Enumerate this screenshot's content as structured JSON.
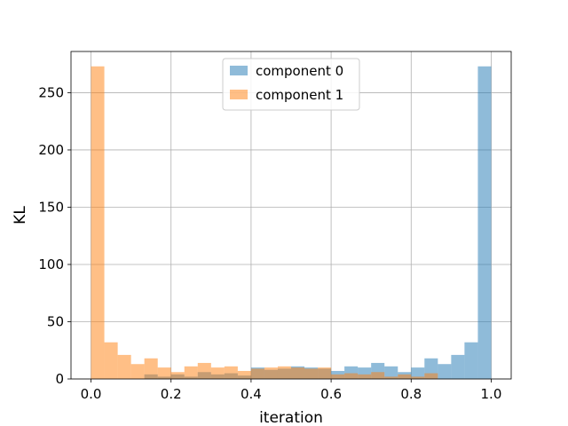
{
  "chart_data": {
    "type": "histogram",
    "title": "",
    "xlabel": "iteration",
    "ylabel": "KL",
    "xlim": [
      -0.05,
      1.05
    ],
    "ylim": [
      0,
      286
    ],
    "x_ticks": [
      "0.0",
      "0.2",
      "0.4",
      "0.6",
      "0.8",
      "1.0"
    ],
    "y_ticks": [
      "0",
      "50",
      "100",
      "150",
      "200",
      "250"
    ],
    "grid": true,
    "legend_position": "top-center",
    "bin_width": 0.0333,
    "series": [
      {
        "name": "component 0",
        "color": "#1f77b4",
        "alpha": 0.5,
        "bins": [
          {
            "x0": 0.1333,
            "x1": 0.1667,
            "count": 4
          },
          {
            "x0": 0.1667,
            "x1": 0.2,
            "count": 2
          },
          {
            "x0": 0.2,
            "x1": 0.2333,
            "count": 4
          },
          {
            "x0": 0.2333,
            "x1": 0.2667,
            "count": 2
          },
          {
            "x0": 0.2667,
            "x1": 0.3,
            "count": 6
          },
          {
            "x0": 0.3,
            "x1": 0.3333,
            "count": 4
          },
          {
            "x0": 0.3333,
            "x1": 0.3667,
            "count": 5
          },
          {
            "x0": 0.3667,
            "x1": 0.4,
            "count": 3
          },
          {
            "x0": 0.4,
            "x1": 0.4333,
            "count": 10
          },
          {
            "x0": 0.4333,
            "x1": 0.4667,
            "count": 8
          },
          {
            "x0": 0.4667,
            "x1": 0.5,
            "count": 9
          },
          {
            "x0": 0.5,
            "x1": 0.5333,
            "count": 11
          },
          {
            "x0": 0.5333,
            "x1": 0.5667,
            "count": 10
          },
          {
            "x0": 0.5667,
            "x1": 0.6,
            "count": 9
          },
          {
            "x0": 0.6,
            "x1": 0.6333,
            "count": 7
          },
          {
            "x0": 0.6333,
            "x1": 0.6667,
            "count": 11
          },
          {
            "x0": 0.6667,
            "x1": 0.7,
            "count": 10
          },
          {
            "x0": 0.7,
            "x1": 0.7333,
            "count": 14
          },
          {
            "x0": 0.7333,
            "x1": 0.7667,
            "count": 11
          },
          {
            "x0": 0.7667,
            "x1": 0.8,
            "count": 6
          },
          {
            "x0": 0.8,
            "x1": 0.8333,
            "count": 10
          },
          {
            "x0": 0.8333,
            "x1": 0.8667,
            "count": 18
          },
          {
            "x0": 0.8667,
            "x1": 0.9,
            "count": 13
          },
          {
            "x0": 0.9,
            "x1": 0.9333,
            "count": 21
          },
          {
            "x0": 0.9333,
            "x1": 0.9667,
            "count": 32
          },
          {
            "x0": 0.9667,
            "x1": 1.0,
            "count": 273
          }
        ]
      },
      {
        "name": "component 1",
        "color": "#ff7f0e",
        "alpha": 0.5,
        "bins": [
          {
            "x0": 0.0,
            "x1": 0.0333,
            "count": 273
          },
          {
            "x0": 0.0333,
            "x1": 0.0667,
            "count": 32
          },
          {
            "x0": 0.0667,
            "x1": 0.1,
            "count": 21
          },
          {
            "x0": 0.1,
            "x1": 0.1333,
            "count": 13
          },
          {
            "x0": 0.1333,
            "x1": 0.1667,
            "count": 18
          },
          {
            "x0": 0.1667,
            "x1": 0.2,
            "count": 10
          },
          {
            "x0": 0.2,
            "x1": 0.2333,
            "count": 6
          },
          {
            "x0": 0.2333,
            "x1": 0.2667,
            "count": 11
          },
          {
            "x0": 0.2667,
            "x1": 0.3,
            "count": 14
          },
          {
            "x0": 0.3,
            "x1": 0.3333,
            "count": 10
          },
          {
            "x0": 0.3333,
            "x1": 0.3667,
            "count": 11
          },
          {
            "x0": 0.3667,
            "x1": 0.4,
            "count": 7
          },
          {
            "x0": 0.4,
            "x1": 0.4333,
            "count": 9
          },
          {
            "x0": 0.4333,
            "x1": 0.4667,
            "count": 10
          },
          {
            "x0": 0.4667,
            "x1": 0.5,
            "count": 11
          },
          {
            "x0": 0.5,
            "x1": 0.5333,
            "count": 10
          },
          {
            "x0": 0.5333,
            "x1": 0.5667,
            "count": 9
          },
          {
            "x0": 0.5667,
            "x1": 0.6,
            "count": 10
          },
          {
            "x0": 0.6,
            "x1": 0.6333,
            "count": 4
          },
          {
            "x0": 0.6333,
            "x1": 0.6667,
            "count": 5
          },
          {
            "x0": 0.6667,
            "x1": 0.7,
            "count": 4
          },
          {
            "x0": 0.7,
            "x1": 0.7333,
            "count": 6
          },
          {
            "x0": 0.7333,
            "x1": 0.7667,
            "count": 2
          },
          {
            "x0": 0.7667,
            "x1": 0.8,
            "count": 4
          },
          {
            "x0": 0.8,
            "x1": 0.8333,
            "count": 2
          },
          {
            "x0": 0.8333,
            "x1": 0.8667,
            "count": 5
          }
        ]
      }
    ]
  }
}
